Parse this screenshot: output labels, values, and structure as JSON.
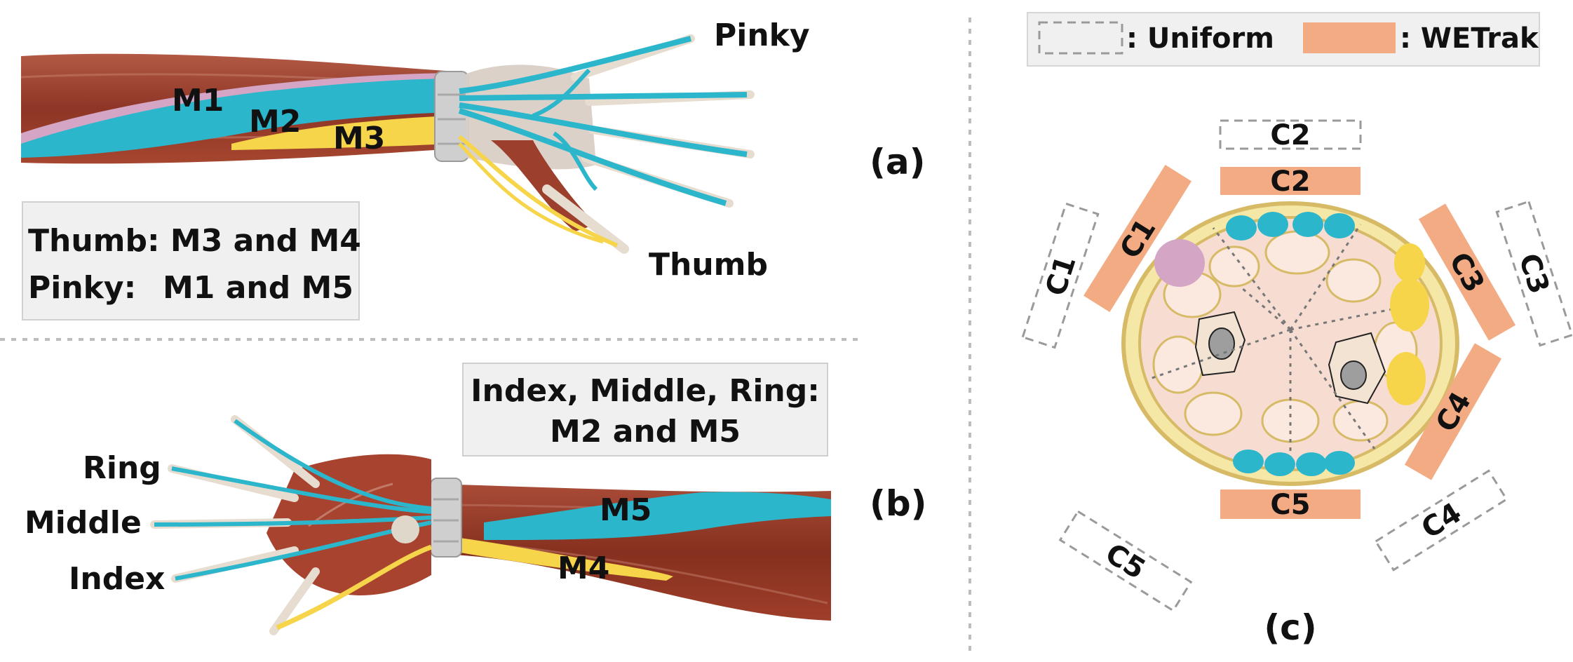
{
  "panel_a": {
    "label": "(a)",
    "fingers": {
      "pinky": "Pinky",
      "thumb": "Thumb"
    },
    "muscles": {
      "m1": "M1",
      "m2": "M2",
      "m3": "M3"
    },
    "info": {
      "line1": "Thumb: M3 and M4",
      "line2_key": "Pinky:",
      "line2_val": "M1 and M5"
    }
  },
  "panel_b": {
    "label": "(b)",
    "fingers": {
      "ring": "Ring",
      "middle": "Middle",
      "index": "Index"
    },
    "muscles": {
      "m4": "M4",
      "m5": "M5"
    },
    "info": {
      "line1": "Index, Middle, Ring:",
      "line2": "M2 and M5"
    }
  },
  "panel_c": {
    "label": "(c)",
    "legend": {
      "uniform": ": Uniform",
      "wetrak": ": WETrak"
    },
    "channels": {
      "uniform": [
        "C1",
        "C2",
        "C3",
        "C4",
        "C5"
      ],
      "wetrak": [
        "C1",
        "C2",
        "C3",
        "C4",
        "C5"
      ]
    }
  },
  "colors": {
    "muscle": "#9b3b2c",
    "tendon": "#2cb6cc",
    "pink": "#d4a5c4",
    "yellow": "#f6d54a",
    "wetrak": "#f2ab82",
    "uniform": "#9a9a9a",
    "cross_fill": "#f5e7a6",
    "cross_ring": "#d7ba66",
    "tissue": "#f7ddd1"
  }
}
